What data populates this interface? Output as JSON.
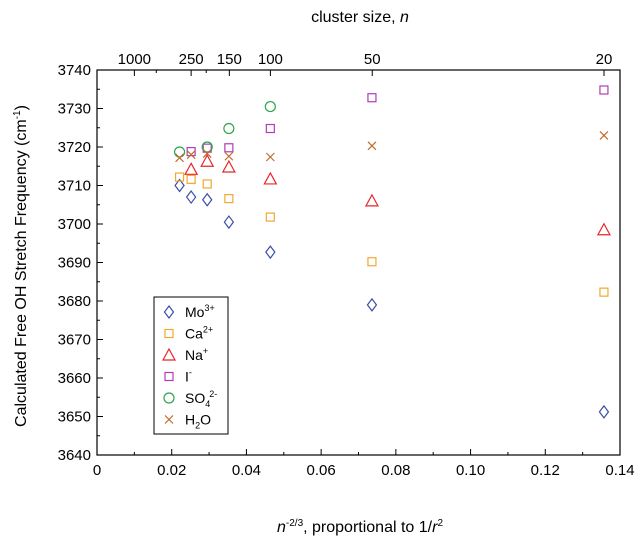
{
  "chart_data": {
    "type": "scatter",
    "xlabel_top": {
      "base": "cluster size, ",
      "italic": "n"
    },
    "xlabel_bottom": {
      "italic_n": "n",
      "exp": "-2/3",
      "mid": ", proportional to 1/",
      "italic_r": "r",
      "exp2": "2"
    },
    "ylabel": {
      "pre": "Calculated Free OH Stretch Frequency (cm",
      "exp": "-1",
      "post": ")"
    },
    "xlim": [
      0,
      0.14
    ],
    "ylim": [
      3640,
      3740
    ],
    "x_ticks": [
      "0",
      "0.02",
      "0.04",
      "0.06",
      "0.08",
      "0.10",
      "0.12",
      "0.14"
    ],
    "x_tick_values": [
      0,
      0.02,
      0.04,
      0.06,
      0.08,
      0.1,
      0.12,
      0.14
    ],
    "y_ticks": [
      3640,
      3650,
      3660,
      3670,
      3680,
      3690,
      3700,
      3710,
      3720,
      3730,
      3740
    ],
    "top_ticks": [
      {
        "n": 1000,
        "label": "1000"
      },
      {
        "n": 250,
        "label": "250"
      },
      {
        "n": 150,
        "label": "150"
      },
      {
        "n": 100,
        "label": "100"
      },
      {
        "n": 50,
        "label": "50"
      },
      {
        "n": 20,
        "label": "20"
      }
    ],
    "top_minor_n": [
      500,
      200
    ],
    "legend_position": "lower-left",
    "series": [
      {
        "name": "Mo",
        "sup": "3+",
        "sub": "",
        "marker": "diamond",
        "color": "#3a4ea8",
        "x": [
          0.0221,
          0.0252,
          0.0295,
          0.0353,
          0.0464,
          0.0736,
          0.1357
        ],
        "y": [
          3710,
          3707,
          3706.3,
          3700.5,
          3692.7,
          3679,
          3651.2
        ]
      },
      {
        "name": "Ca",
        "sup": "2+",
        "sub": "",
        "marker": "square",
        "color": "#f0a830",
        "x": [
          0.0221,
          0.0252,
          0.0295,
          0.0353,
          0.0464,
          0.0736,
          0.1357
        ],
        "y": [
          3712.2,
          3711.6,
          3710.4,
          3706.6,
          3701.8,
          3690.2,
          3682.3
        ]
      },
      {
        "name": "Na",
        "sup": "+",
        "sub": "",
        "marker": "triangle",
        "color": "#e8262b",
        "x": [
          0.0252,
          0.0295,
          0.0353,
          0.0464,
          0.0736,
          0.1357
        ],
        "y": [
          3714.2,
          3716.3,
          3714.8,
          3711.7,
          3706,
          3698.5
        ]
      },
      {
        "name": "I",
        "sup": "-",
        "sub": "",
        "marker": "square",
        "color": "#b03cb8",
        "x": [
          0.0252,
          0.0295,
          0.0353,
          0.0464,
          0.0736,
          0.1357
        ],
        "y": [
          3718.8,
          3719.7,
          3719.8,
          3724.8,
          3732.8,
          3734.8
        ]
      },
      {
        "name": "SO",
        "sup": "2-",
        "sub": "4",
        "marker": "circle",
        "color": "#2aa64a",
        "x": [
          0.0221,
          0.0295,
          0.0353,
          0.0464
        ],
        "y": [
          3718.7,
          3720,
          3724.8,
          3730.5
        ]
      },
      {
        "name": "H",
        "sup": "",
        "sub": "2",
        "name_tail": "O",
        "marker": "x",
        "color": "#c06a2a",
        "x": [
          0.0221,
          0.0252,
          0.0295,
          0.0353,
          0.0464,
          0.0736,
          0.1357
        ],
        "y": [
          3717.2,
          3718,
          3718.3,
          3717.6,
          3717.4,
          3720.3,
          3723
        ]
      }
    ]
  }
}
